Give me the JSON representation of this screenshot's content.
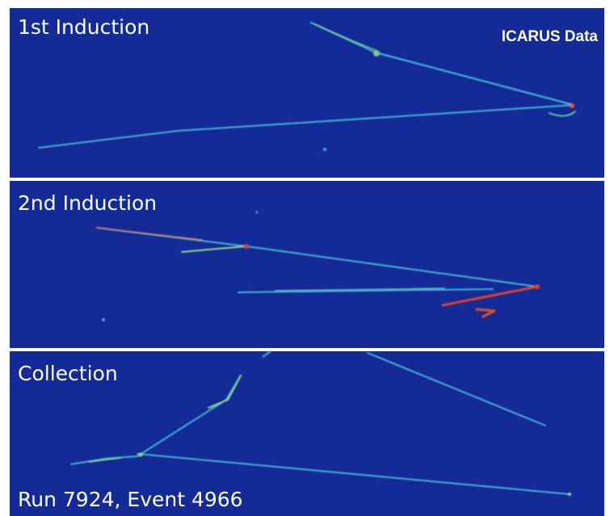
{
  "panels": [
    {
      "label": "1st Induction",
      "badge": "ICARUS Data"
    },
    {
      "label": "2nd Induction"
    },
    {
      "label": "Collection",
      "footer": "Run 7924, Event 4966"
    }
  ]
}
